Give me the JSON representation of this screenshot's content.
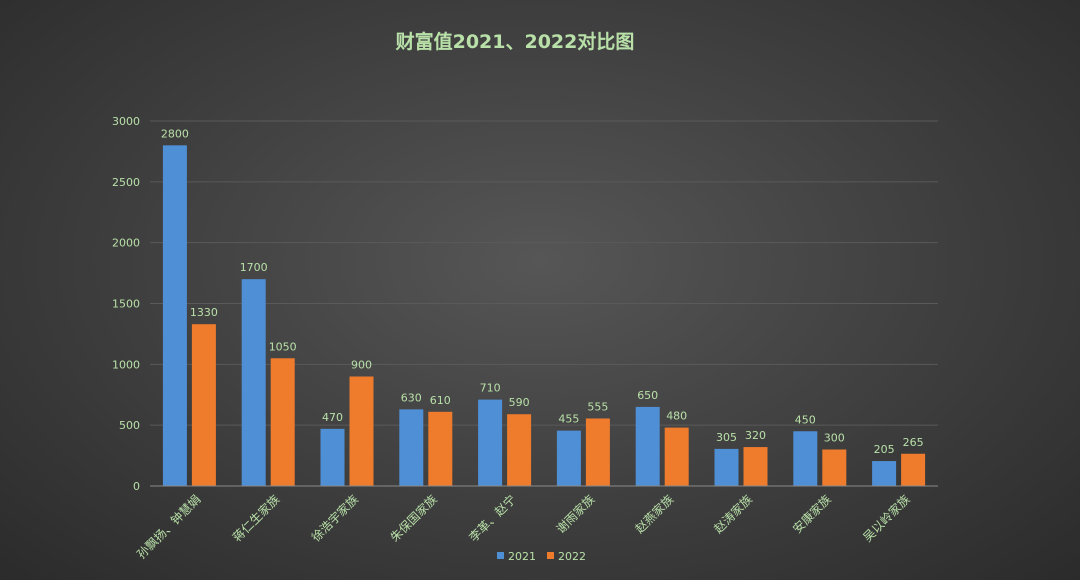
{
  "chart_data": {
    "type": "bar",
    "title": "财富值2021、2022对比图",
    "categories": [
      "孙飘扬、钟慧娟",
      "蒋仁生家族",
      "徐浩宇家族",
      "朱保国家族",
      "李革、赵宁",
      "谢雨家族",
      "赵燕家族",
      "赵涛家族",
      "安康家族",
      "吴以岭家族"
    ],
    "series": [
      {
        "name": "2021",
        "color": "#4f8fd6",
        "values": [
          2800,
          1700,
          470,
          630,
          710,
          455,
          650,
          305,
          450,
          205
        ]
      },
      {
        "name": "2022",
        "color": "#ef7b2d",
        "values": [
          1330,
          1050,
          900,
          610,
          590,
          555,
          480,
          320,
          300,
          265
        ]
      }
    ],
    "ylim": [
      0,
      3000
    ],
    "yticks": [
      0,
      500,
      1000,
      1500,
      2000,
      2500,
      3000
    ],
    "grid": true,
    "legend_position": "bottom"
  }
}
